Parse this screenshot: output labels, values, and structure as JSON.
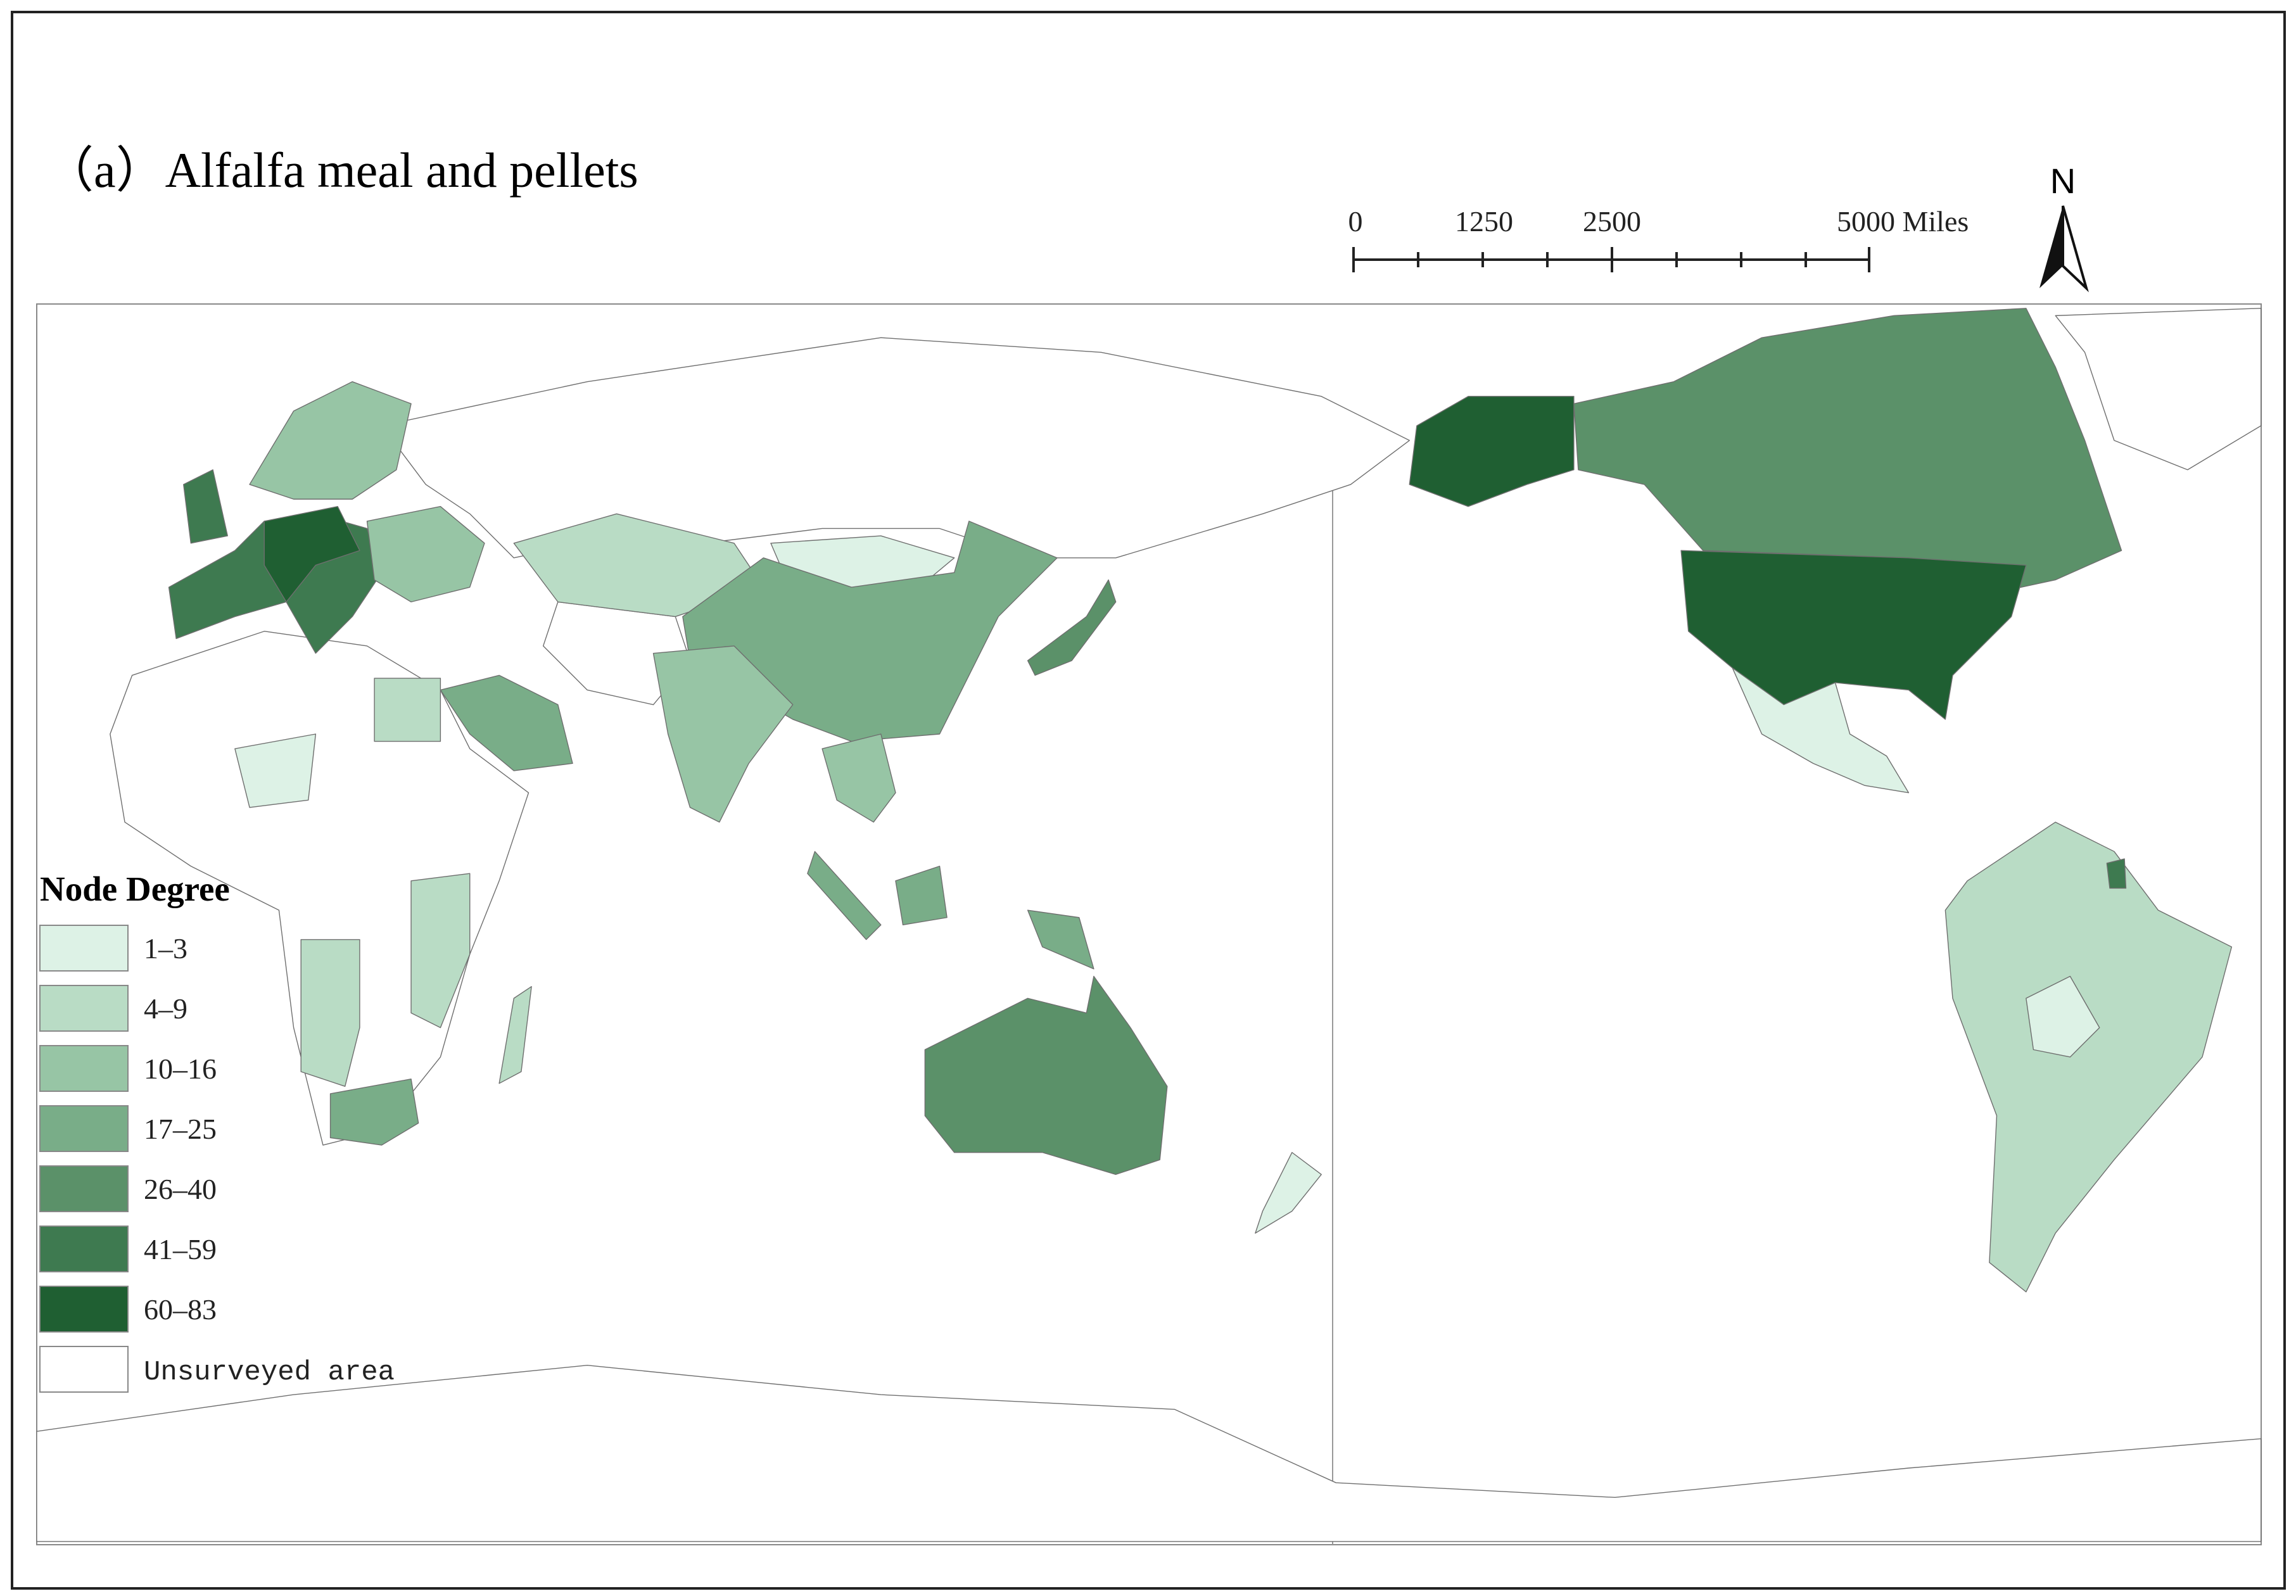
{
  "title": "（a）Alfalfa meal and pellets",
  "scale_bar": {
    "labels": [
      "0",
      "1250",
      "2500",
      "5000 Miles"
    ]
  },
  "north_arrow": "N",
  "legend": {
    "title": "Node Degree",
    "items": [
      {
        "label": "1–3",
        "color": "#ddf2e6"
      },
      {
        "label": "4–9",
        "color": "#b9dcc5"
      },
      {
        "label": "10–16",
        "color": "#97c5a5"
      },
      {
        "label": "17–25",
        "color": "#79ad88"
      },
      {
        "label": "26–40",
        "color": "#5b9169"
      },
      {
        "label": "41–59",
        "color": "#3e7a50"
      },
      {
        "label": "60–83",
        "color": "#1f5f32"
      },
      {
        "label": "Unsurveyed area",
        "color": "#ffffff"
      }
    ]
  }
}
